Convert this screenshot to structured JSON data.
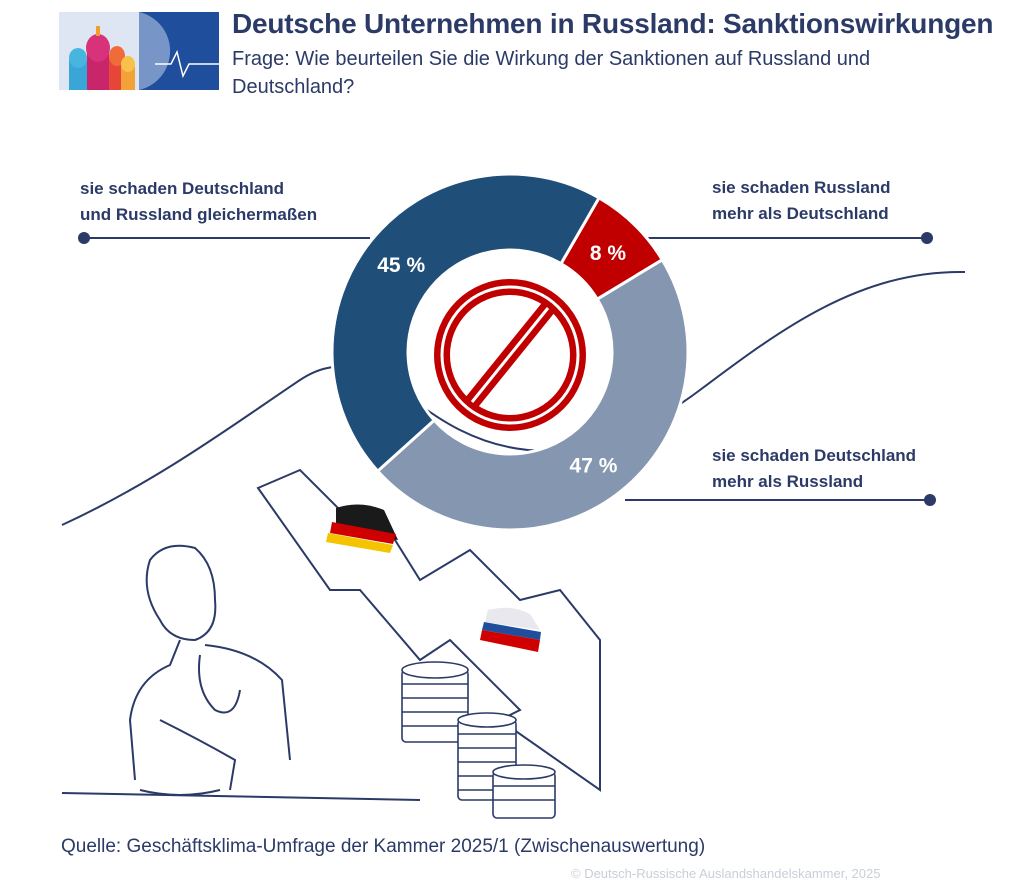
{
  "header": {
    "title": "Deutsche Unternehmen in Russland: Sanktionswirkungen",
    "subtitle": "Frage: Wie beurteilen Sie die Wirkung der Sanktionen auf Russland und Deutschland?"
  },
  "chart_data": {
    "type": "pie",
    "variant": "donut",
    "categories": [
      "sie schaden Russland mehr als Deutschland",
      "sie schaden Deutschland mehr als Russland",
      "sie schaden Deutschland und Russland gleichermaßen"
    ],
    "values": [
      8,
      47,
      45
    ],
    "value_labels": [
      "8 %",
      "47 %",
      "45 %"
    ],
    "colors": [
      "#c00000",
      "#8496b0",
      "#1f4e79"
    ],
    "legend": "callout lines",
    "labels_lines": {
      "equal": [
        "sie schaden Deutschland",
        "und Russland gleichermaßen"
      ],
      "russia": [
        "sie schaden Russland",
        "mehr als Deutschland"
      ],
      "germany": [
        "sie schaden Deutschland",
        "mehr als Russland"
      ]
    }
  },
  "footer": {
    "source": "Quelle: Geschäftsklima-Umfrage der Kammer 2025/1 (Zwischenauswertung)",
    "copyright": "© Deutsch-Russische Auslandshandelskammer, 2025"
  },
  "icons": [
    "kremlin-logo-icon",
    "prohibition-icon",
    "thinking-man-illustration",
    "falling-arrow-illustration",
    "coin-stack-icon"
  ]
}
